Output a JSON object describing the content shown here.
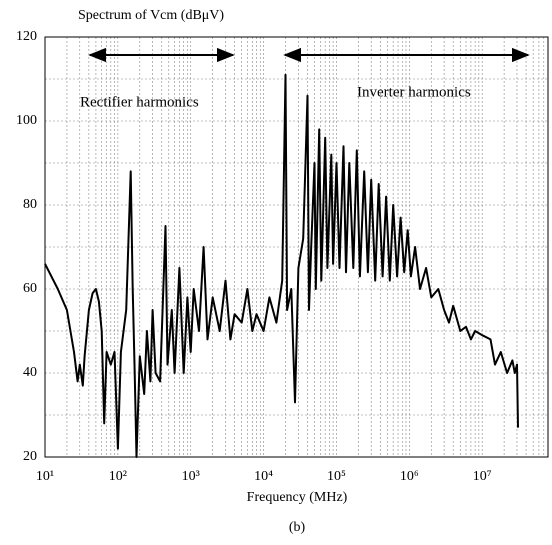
{
  "chart_data": {
    "type": "line",
    "title": "Spectrum of Vcm (dBμV)",
    "x_label": "Frequency (MHz)",
    "caption": "(b)",
    "annotations": [
      "Rectifier harmonics",
      "Inverter harmonics"
    ],
    "log_x": true,
    "grid": true,
    "color": "#000000",
    "xlim": [
      10,
      80000000
    ],
    "xticks": [
      {
        "value": 10,
        "label": "10¹"
      },
      {
        "value": 100,
        "label": "10²"
      },
      {
        "value": 1000,
        "label": "10³"
      },
      {
        "value": 10000,
        "label": "10⁴"
      },
      {
        "value": 100000,
        "label": "10⁵"
      },
      {
        "value": 1000000,
        "label": "10⁶"
      },
      {
        "value": 10000000,
        "label": "10⁷"
      }
    ],
    "ylim": [
      20,
      120
    ],
    "yticks": [
      20,
      40,
      60,
      80,
      100,
      120
    ],
    "x": [
      10,
      15,
      20,
      25,
      28,
      30,
      33,
      35,
      40,
      45,
      50,
      55,
      60,
      65,
      70,
      80,
      90,
      100,
      110,
      130,
      150,
      160,
      170,
      180,
      200,
      230,
      250,
      280,
      300,
      330,
      380,
      450,
      480,
      550,
      600,
      700,
      800,
      900,
      1000,
      1100,
      1300,
      1500,
      1700,
      2000,
      2500,
      3000,
      3500,
      4000,
      5000,
      6000,
      7000,
      8000,
      10000,
      12000,
      15000,
      18000,
      20000,
      21000,
      24000,
      27000,
      30000,
      35000,
      40000,
      42000,
      45000,
      50000,
      52000,
      58000,
      62000,
      70000,
      75000,
      85000,
      90000,
      100000,
      110000,
      125000,
      135000,
      150000,
      170000,
      190000,
      210000,
      240000,
      270000,
      300000,
      340000,
      380000,
      430000,
      480000,
      540000,
      600000,
      680000,
      760000,
      850000,
      950000,
      1050000,
      1200000,
      1400000,
      1700000,
      2000000,
      2500000,
      3000000,
      3500000,
      4000000,
      5000000,
      6000000,
      7000000,
      8000000,
      10000000,
      13000000,
      15000000,
      18000000,
      22000000,
      26000000,
      28000000,
      30000000,
      31000000
    ],
    "values": [
      66,
      60,
      55,
      45,
      38,
      42,
      37,
      44,
      55,
      59,
      60,
      57,
      50,
      28,
      45,
      42,
      45,
      22,
      45,
      55,
      88,
      60,
      40,
      20,
      44,
      35,
      50,
      38,
      55,
      40,
      38,
      75,
      42,
      55,
      40,
      65,
      40,
      58,
      45,
      60,
      50,
      70,
      48,
      58,
      50,
      62,
      48,
      54,
      52,
      60,
      50,
      54,
      50,
      58,
      52,
      62,
      111,
      55,
      60,
      33,
      65,
      72,
      106,
      55,
      70,
      90,
      60,
      98,
      62,
      96,
      65,
      92,
      66,
      90,
      65,
      94,
      64,
      90,
      65,
      93,
      63,
      88,
      64,
      86,
      62,
      85,
      63,
      82,
      62,
      80,
      63,
      77,
      64,
      74,
      63,
      70,
      60,
      65,
      58,
      60,
      55,
      52,
      56,
      50,
      51,
      48,
      50,
      49,
      48,
      42,
      45,
      40,
      43,
      40,
      42,
      27
    ]
  }
}
